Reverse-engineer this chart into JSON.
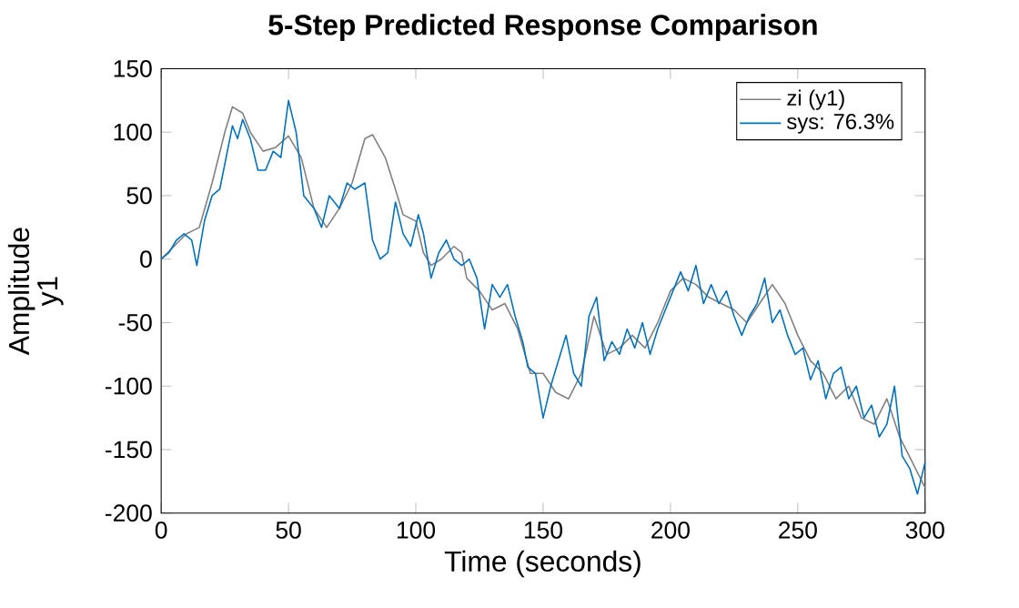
{
  "chart_data": {
    "type": "line",
    "title": "5-Step Predicted Response Comparison",
    "xlabel": "Time (seconds)",
    "ylabel": "Amplitude",
    "annotations": [
      "y1"
    ],
    "xlim": [
      0,
      300
    ],
    "xticks": [
      0,
      50,
      100,
      150,
      200,
      250,
      300
    ],
    "ylim": [
      -200,
      150
    ],
    "yticks": [
      -200,
      -150,
      -100,
      -50,
      0,
      50,
      100,
      150
    ],
    "legend": "top right",
    "marker": "none",
    "line_style": "solid",
    "series": [
      {
        "name": "zi (y1)",
        "color": "#808080",
        "x": [
          0,
          5,
          10,
          15,
          20,
          25,
          28,
          32,
          35,
          40,
          45,
          50,
          55,
          60,
          65,
          70,
          75,
          80,
          83,
          88,
          92,
          95,
          100,
          103,
          106,
          110,
          115,
          118,
          120,
          125,
          130,
          135,
          140,
          145,
          150,
          155,
          160,
          165,
          170,
          175,
          180,
          185,
          190,
          195,
          200,
          205,
          210,
          215,
          220,
          225,
          230,
          235,
          240,
          245,
          250,
          255,
          260,
          265,
          270,
          275,
          280,
          285,
          290,
          295,
          300
        ],
        "values": [
          0,
          10,
          20,
          25,
          60,
          100,
          120,
          115,
          100,
          85,
          88,
          97,
          80,
          40,
          25,
          40,
          60,
          95,
          98,
          80,
          55,
          35,
          30,
          5,
          -5,
          0,
          10,
          5,
          -15,
          -25,
          -40,
          -35,
          -55,
          -90,
          -90,
          -105,
          -110,
          -90,
          -45,
          -75,
          -70,
          -60,
          -70,
          -50,
          -25,
          -15,
          -20,
          -30,
          -35,
          -40,
          -50,
          -35,
          -20,
          -35,
          -60,
          -80,
          -90,
          -110,
          -100,
          -125,
          -130,
          -110,
          -140,
          -160,
          -180
        ]
      },
      {
        "name": "sys: 76.3%",
        "color": "#0072bd",
        "x": [
          0,
          3,
          6,
          9,
          12,
          14,
          17,
          20,
          23,
          25,
          28,
          30,
          32,
          35,
          38,
          41,
          44,
          47,
          50,
          53,
          56,
          60,
          63,
          66,
          70,
          73,
          76,
          80,
          83,
          86,
          89,
          92,
          95,
          98,
          101,
          103,
          106,
          109,
          112,
          115,
          118,
          121,
          124,
          127,
          130,
          133,
          136,
          139,
          142,
          144,
          147,
          150,
          153,
          156,
          159,
          162,
          165,
          168,
          171,
          174,
          177,
          180,
          183,
          186,
          189,
          192,
          195,
          198,
          201,
          204,
          207,
          210,
          213,
          216,
          219,
          222,
          225,
          228,
          231,
          234,
          237,
          240,
          243,
          246,
          249,
          252,
          255,
          258,
          261,
          264,
          267,
          270,
          273,
          276,
          279,
          282,
          285,
          288,
          291,
          294,
          297,
          300
        ],
        "values": [
          0,
          5,
          15,
          20,
          15,
          -5,
          30,
          50,
          55,
          75,
          105,
          95,
          110,
          95,
          70,
          70,
          85,
          80,
          125,
          100,
          50,
          40,
          25,
          50,
          40,
          60,
          55,
          60,
          15,
          0,
          5,
          45,
          20,
          10,
          35,
          20,
          -15,
          5,
          15,
          0,
          -5,
          0,
          -15,
          -55,
          -20,
          -30,
          -20,
          -45,
          -65,
          -85,
          -90,
          -125,
          -100,
          -80,
          -60,
          -90,
          -100,
          -45,
          -30,
          -80,
          -65,
          -75,
          -55,
          -70,
          -50,
          -75,
          -55,
          -40,
          -25,
          -10,
          -25,
          -5,
          -35,
          -20,
          -35,
          -25,
          -45,
          -60,
          -45,
          -35,
          -15,
          -50,
          -40,
          -60,
          -75,
          -70,
          -95,
          -80,
          -110,
          -90,
          -85,
          -110,
          -100,
          -125,
          -115,
          -140,
          -130,
          -100,
          -155,
          -165,
          -185,
          -160
        ]
      }
    ]
  }
}
